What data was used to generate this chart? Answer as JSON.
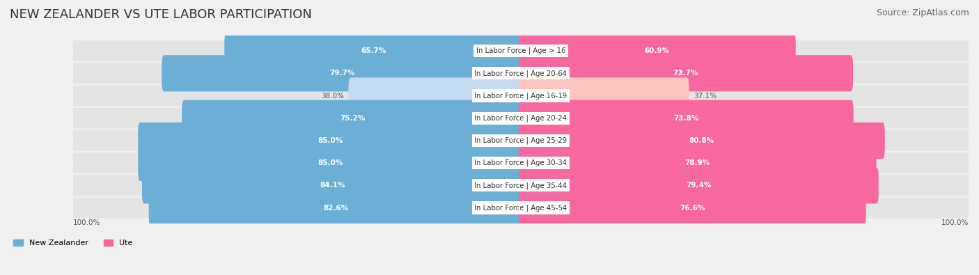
{
  "title": "NEW ZEALANDER VS UTE LABOR PARTICIPATION",
  "source": "Source: ZipAtlas.com",
  "categories": [
    "In Labor Force | Age > 16",
    "In Labor Force | Age 20-64",
    "In Labor Force | Age 16-19",
    "In Labor Force | Age 20-24",
    "In Labor Force | Age 25-29",
    "In Labor Force | Age 30-34",
    "In Labor Force | Age 35-44",
    "In Labor Force | Age 45-54"
  ],
  "nz_values": [
    65.7,
    79.7,
    38.0,
    75.2,
    85.0,
    85.0,
    84.1,
    82.6
  ],
  "ute_values": [
    60.9,
    73.7,
    37.1,
    73.8,
    80.8,
    78.9,
    79.4,
    76.6
  ],
  "nz_color_strong": "#6baed6",
  "nz_color_light": "#c6dbef",
  "ute_color_strong": "#f768a1",
  "ute_color_light": "#fcc5c0",
  "bg_color": "#f0f0f0",
  "row_bg": "#e4e4e4",
  "title_fontsize": 13,
  "source_fontsize": 9,
  "bar_height": 0.62,
  "max_value": 100.0
}
